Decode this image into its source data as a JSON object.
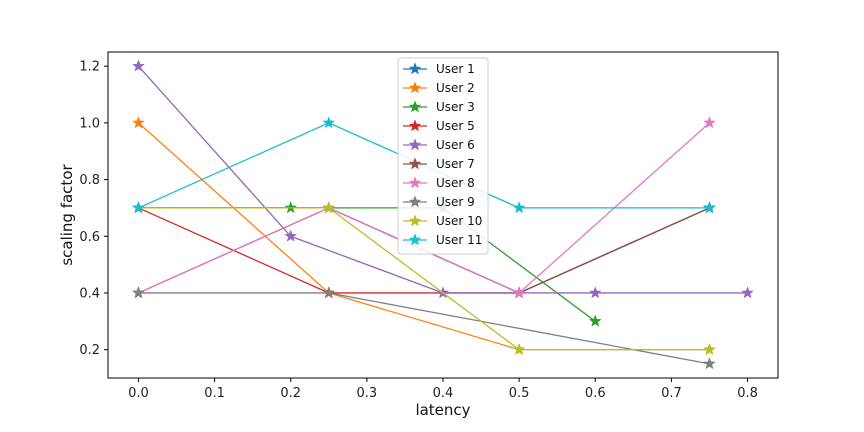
{
  "chart_data": {
    "type": "line",
    "xlabel": "latency",
    "ylabel": "scaling factor",
    "xlim": [
      -0.04,
      0.84
    ],
    "ylim": [
      0.1,
      1.25
    ],
    "xticks": [
      "0.0",
      "0.1",
      "0.2",
      "0.3",
      "0.4",
      "0.5",
      "0.6",
      "0.7",
      "0.8"
    ],
    "yticks": [
      "0.2",
      "0.4",
      "0.6",
      "0.8",
      "1.0",
      "1.2"
    ],
    "grid": false,
    "legend_position": "top-center",
    "marker": "star",
    "series": [
      {
        "name": "User 1",
        "color": "#1f77b4",
        "x": [
          0.0,
          0.25,
          0.5,
          0.75
        ],
        "y": [
          0.7,
          0.7,
          0.4,
          0.7
        ]
      },
      {
        "name": "User 2",
        "color": "#ff7f0e",
        "x": [
          0.0,
          0.25,
          0.5,
          0.75
        ],
        "y": [
          1.0,
          0.4,
          0.2,
          0.2
        ]
      },
      {
        "name": "User 3",
        "color": "#2ca02c",
        "x": [
          0.0,
          0.2,
          0.4,
          0.6
        ],
        "y": [
          0.7,
          0.7,
          0.7,
          0.3
        ]
      },
      {
        "name": "User 5",
        "color": "#d62728",
        "x": [
          0.0,
          0.25,
          0.5,
          0.75
        ],
        "y": [
          0.7,
          0.4,
          0.4,
          0.7
        ]
      },
      {
        "name": "User 6",
        "color": "#9467bd",
        "x": [
          0.0,
          0.2,
          0.4,
          0.6,
          0.8
        ],
        "y": [
          1.2,
          0.6,
          0.4,
          0.4,
          0.4
        ]
      },
      {
        "name": "User 7",
        "color": "#8c564b",
        "x": [
          0.0,
          0.25,
          0.5,
          0.75
        ],
        "y": [
          0.4,
          0.7,
          0.4,
          0.7
        ]
      },
      {
        "name": "User 8",
        "color": "#e377c2",
        "x": [
          0.0,
          0.25,
          0.5,
          0.75
        ],
        "y": [
          0.4,
          0.7,
          0.4,
          1.0
        ]
      },
      {
        "name": "User 9",
        "color": "#7f7f7f",
        "x": [
          0.0,
          0.25,
          0.75
        ],
        "y": [
          0.4,
          0.4,
          0.15
        ]
      },
      {
        "name": "User 10",
        "color": "#bcbd22",
        "x": [
          0.0,
          0.25,
          0.5,
          0.75
        ],
        "y": [
          0.7,
          0.7,
          0.2,
          0.2
        ]
      },
      {
        "name": "User 11",
        "color": "#17becf",
        "x": [
          0.0,
          0.25,
          0.5,
          0.75
        ],
        "y": [
          0.7,
          1.0,
          0.7,
          0.7
        ]
      }
    ]
  }
}
